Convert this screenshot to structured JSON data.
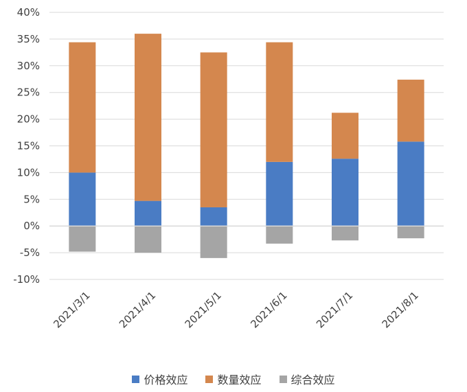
{
  "chart_data": {
    "type": "bar",
    "stacked": true,
    "categories": [
      "2021/3/1",
      "2021/4/1",
      "2021/5/1",
      "2021/6/1",
      "2021/7/1",
      "2021/8/1"
    ],
    "series": [
      {
        "name": "价格效应",
        "color": "#4a7cc4",
        "values": [
          10.0,
          4.7,
          3.5,
          12.0,
          12.6,
          15.8
        ]
      },
      {
        "name": "数量效应",
        "color": "#d4874e",
        "values": [
          24.4,
          31.3,
          29.0,
          22.4,
          8.6,
          11.6
        ]
      },
      {
        "name": "综合效应",
        "color": "#a5a5a5",
        "values": [
          -4.8,
          -5.0,
          -6.0,
          -3.3,
          -2.7,
          -2.3
        ]
      }
    ],
    "yticks": [
      "40%",
      "35%",
      "30%",
      "25%",
      "20%",
      "15%",
      "10%",
      "5%",
      "0%",
      "-5%",
      "-10%"
    ],
    "ylim": [
      -10,
      40
    ],
    "ytick_step": 5,
    "legend_position": "bottom",
    "grid": true
  }
}
